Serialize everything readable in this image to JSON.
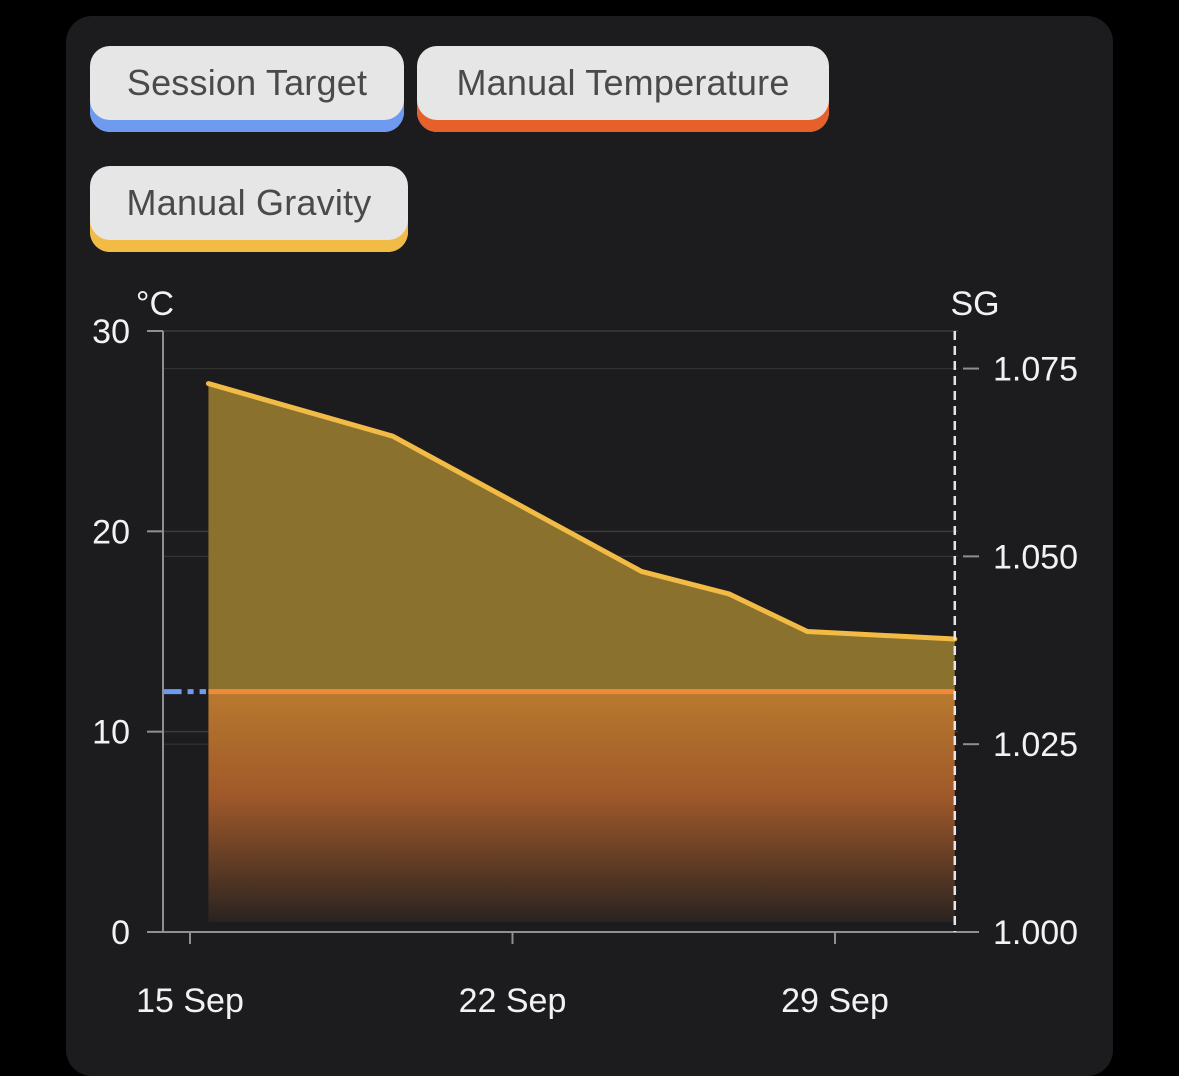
{
  "legend": {
    "session_target": "Session Target",
    "manual_temperature": "Manual Temperature",
    "manual_gravity": "Manual Gravity"
  },
  "colors": {
    "background": "#000000",
    "card": "#1c1c1e",
    "session_target": "#6e9bf0",
    "manual_temperature": "#e6602c",
    "manual_gravity": "#f2bb45"
  },
  "chart_data": {
    "type": "line",
    "left_axis": {
      "unit": "°C",
      "range": [
        0,
        30
      ],
      "ticks": [
        "0",
        "10",
        "20",
        "30"
      ],
      "tick_values": [
        0,
        10,
        20,
        30
      ]
    },
    "right_axis": {
      "unit": "SG",
      "range": [
        1.0,
        1.08
      ],
      "ticks": [
        "1.000",
        "1.025",
        "1.050",
        "1.075"
      ],
      "tick_values": [
        1.0,
        1.025,
        1.05,
        1.075
      ]
    },
    "x_ticks": [
      "15 Sep",
      "22 Sep",
      "29 Sep"
    ],
    "x_tick_days": [
      15,
      22,
      29
    ],
    "x_range_days": [
      14.6,
      31.6
    ],
    "now_day": 31.6,
    "series": [
      {
        "name": "Session Target",
        "axis": "left",
        "values": [
          {
            "x": 14.6,
            "y": 12
          },
          {
            "x": 15.0,
            "y": 12
          }
        ]
      },
      {
        "name": "Manual Temperature",
        "axis": "left",
        "values": [
          {
            "x": 15.4,
            "y": 12
          },
          {
            "x": 31.6,
            "y": 12
          }
        ]
      },
      {
        "name": "Manual Gravity",
        "axis": "right",
        "values": [
          {
            "x": 15.4,
            "y": 1.073
          },
          {
            "x": 19.4,
            "y": 1.066
          },
          {
            "x": 24.8,
            "y": 1.048
          },
          {
            "x": 26.7,
            "y": 1.045
          },
          {
            "x": 28.4,
            "y": 1.04
          },
          {
            "x": 31.6,
            "y": 1.039
          }
        ]
      }
    ],
    "grid": true
  }
}
